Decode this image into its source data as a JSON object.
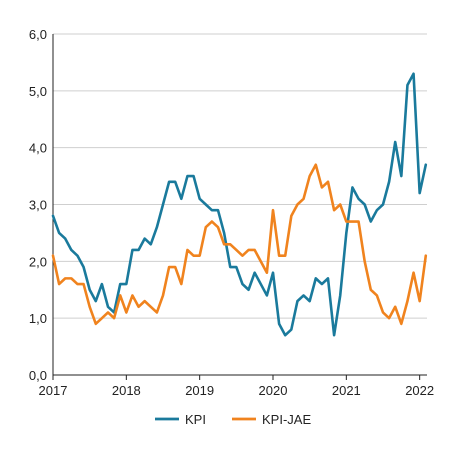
{
  "chart_data": {
    "type": "line",
    "title": "",
    "xlabel": "",
    "ylabel": "",
    "ylim": [
      0,
      6
    ],
    "xlim": [
      2017,
      2022.1
    ],
    "y_ticks": [
      "0,0",
      "1,0",
      "2,0",
      "3,0",
      "4,0",
      "5,0",
      "6,0"
    ],
    "x_ticks": [
      "2017",
      "2018",
      "2019",
      "2020",
      "2021",
      "2022"
    ],
    "grid": "horizontal",
    "legend_position": "bottom",
    "series": [
      {
        "name": "KPI",
        "color": "#1a7a9c",
        "values": [
          2.8,
          2.5,
          2.4,
          2.2,
          2.1,
          1.9,
          1.5,
          1.3,
          1.6,
          1.2,
          1.1,
          1.6,
          1.6,
          2.2,
          2.2,
          2.4,
          2.3,
          2.6,
          3.0,
          3.4,
          3.4,
          3.1,
          3.5,
          3.5,
          3.1,
          3.0,
          2.9,
          2.9,
          2.5,
          1.9,
          1.9,
          1.6,
          1.5,
          1.8,
          1.6,
          1.4,
          1.8,
          0.9,
          0.7,
          0.8,
          1.3,
          1.4,
          1.3,
          1.7,
          1.6,
          1.7,
          0.7,
          1.4,
          2.5,
          3.3,
          3.1,
          3.0,
          2.7,
          2.9,
          3.0,
          3.4,
          4.1,
          3.5,
          5.1,
          5.3,
          3.2,
          3.7
        ]
      },
      {
        "name": "KPI-JAE",
        "color": "#f0831e",
        "values": [
          2.1,
          1.6,
          1.7,
          1.7,
          1.6,
          1.6,
          1.2,
          0.9,
          1.0,
          1.1,
          1.0,
          1.4,
          1.1,
          1.4,
          1.2,
          1.3,
          1.2,
          1.1,
          1.4,
          1.9,
          1.9,
          1.6,
          2.2,
          2.1,
          2.1,
          2.6,
          2.7,
          2.6,
          2.3,
          2.3,
          2.2,
          2.1,
          2.2,
          2.2,
          2.0,
          1.8,
          2.9,
          2.1,
          2.1,
          2.8,
          3.0,
          3.1,
          3.5,
          3.7,
          3.3,
          3.4,
          2.9,
          3.0,
          2.7,
          2.7,
          2.7,
          2.0,
          1.5,
          1.4,
          1.1,
          1.0,
          1.2,
          0.9,
          1.3,
          1.8,
          1.3,
          2.1
        ]
      }
    ]
  }
}
